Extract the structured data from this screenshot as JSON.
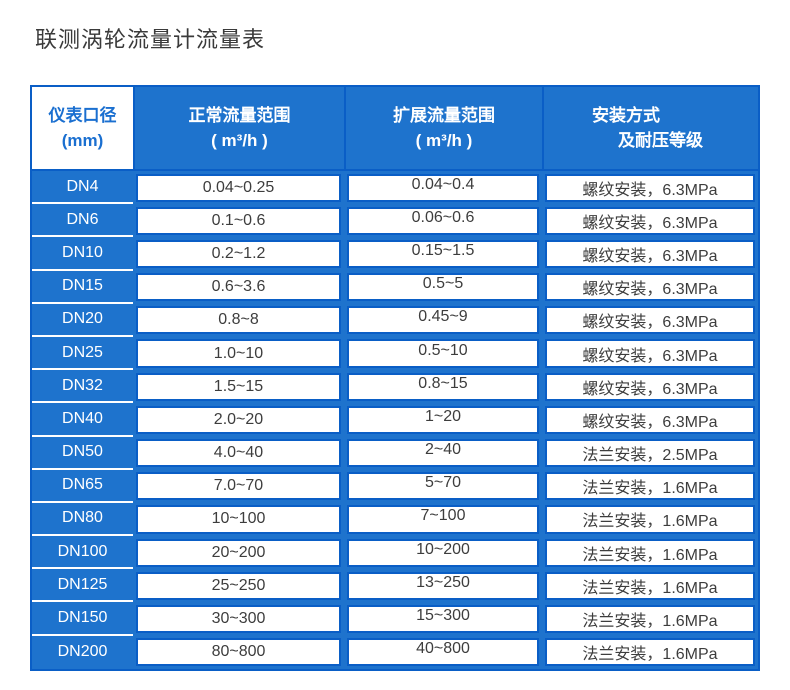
{
  "page": {
    "title": "联测涡轮流量计流量表"
  },
  "colors": {
    "blue_fill": "#1e73cd",
    "blue_border": "#0a5ec6",
    "header_text": "#ffffff",
    "diameter_header_text": "#1a6fd0",
    "cell_text": "#3d3d3d",
    "title_text": "#3a3a3a"
  },
  "table": {
    "headers": [
      {
        "line1": "仪表口径",
        "line2": "(mm)"
      },
      {
        "line1": "正常流量范围",
        "line2": "( m³/h )"
      },
      {
        "line1": "扩展流量范围",
        "line2": "( m³/h )"
      },
      {
        "line1": "安装方式",
        "line2": "及耐压等级"
      }
    ],
    "rows": [
      [
        "DN4",
        "0.04~0.25",
        "0.04~0.4",
        "螺纹安装，6.3MPa"
      ],
      [
        "DN6",
        "0.1~0.6",
        "0.06~0.6",
        "螺纹安装，6.3MPa"
      ],
      [
        "DN10",
        "0.2~1.2",
        "0.15~1.5",
        "螺纹安装，6.3MPa"
      ],
      [
        "DN15",
        "0.6~3.6",
        "0.5~5",
        "螺纹安装，6.3MPa"
      ],
      [
        "DN20",
        "0.8~8",
        "0.45~9",
        "螺纹安装，6.3MPa"
      ],
      [
        "DN25",
        "1.0~10",
        "0.5~10",
        "螺纹安装，6.3MPa"
      ],
      [
        "DN32",
        "1.5~15",
        "0.8~15",
        "螺纹安装，6.3MPa"
      ],
      [
        "DN40",
        "2.0~20",
        "1~20",
        "螺纹安装，6.3MPa"
      ],
      [
        "DN50",
        "4.0~40",
        "2~40",
        "法兰安装，2.5MPa"
      ],
      [
        "DN65",
        "7.0~70",
        "5~70",
        "法兰安装，1.6MPa"
      ],
      [
        "DN80",
        "10~100",
        "7~100",
        "法兰安装，1.6MPa"
      ],
      [
        "DN100",
        "20~200",
        "10~200",
        "法兰安装，1.6MPa"
      ],
      [
        "DN125",
        "25~250",
        "13~250",
        "法兰安装，1.6MPa"
      ],
      [
        "DN150",
        "30~300",
        "15~300",
        "法兰安装，1.6MPa"
      ],
      [
        "DN200",
        "80~800",
        "40~800",
        "法兰安装，1.6MPa"
      ]
    ]
  }
}
